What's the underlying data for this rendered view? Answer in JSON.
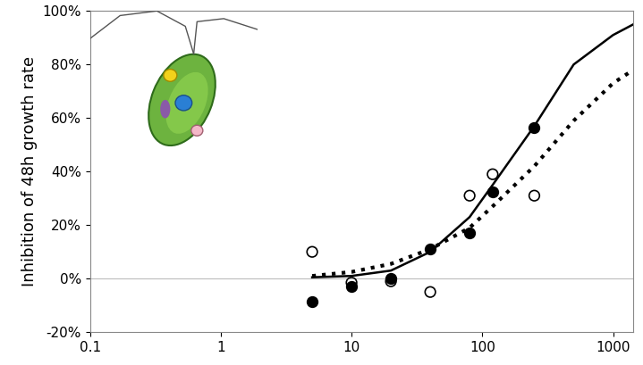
{
  "chart_data": {
    "type": "scatter",
    "y_label": "Inhibition of 48h growth rate",
    "log": "x",
    "xlim": [
      0.1,
      1430
    ],
    "xticks": [
      0.1,
      1,
      10,
      100,
      1000
    ],
    "ylim": [
      -20,
      100
    ],
    "yticks": [
      {
        "value": -20,
        "label": "-20%"
      },
      {
        "value": 0,
        "label": "0%"
      },
      {
        "value": 20,
        "label": "20%"
      },
      {
        "value": 40,
        "label": "40%"
      },
      {
        "value": 60,
        "label": "60%"
      },
      {
        "value": 80,
        "label": "80%"
      },
      {
        "value": 100,
        "label": "100%"
      }
    ],
    "grid": false,
    "series": [
      {
        "type": "scatter",
        "color": "#000000",
        "marker": "circle",
        "x": [
          5,
          10,
          20,
          40,
          80,
          120,
          250
        ],
        "values": [
          -8.5,
          -3,
          0,
          11,
          17,
          32.5,
          56.5
        ]
      },
      {
        "type": "scatter",
        "color": "#000000",
        "marker": "ring",
        "x": [
          5,
          10,
          20,
          40,
          80,
          120,
          250
        ],
        "values": [
          10,
          -1.5,
          -1,
          -5,
          31,
          39,
          31
        ]
      },
      {
        "type": "line",
        "color": "#000000",
        "line_style": "solid",
        "x": [
          5,
          10,
          20,
          40,
          80,
          120,
          250,
          500,
          1000,
          1430
        ],
        "values": [
          0.5,
          1,
          3,
          10,
          23,
          35,
          57,
          80,
          91,
          95
        ]
      },
      {
        "type": "line",
        "color": "#000000",
        "line_style": "dotted",
        "x": [
          5,
          10,
          20,
          40,
          80,
          120,
          250,
          500,
          1000,
          1430
        ],
        "values": [
          1,
          2.5,
          5.5,
          11,
          19,
          27,
          42,
          59,
          73,
          78
        ]
      }
    ]
  }
}
